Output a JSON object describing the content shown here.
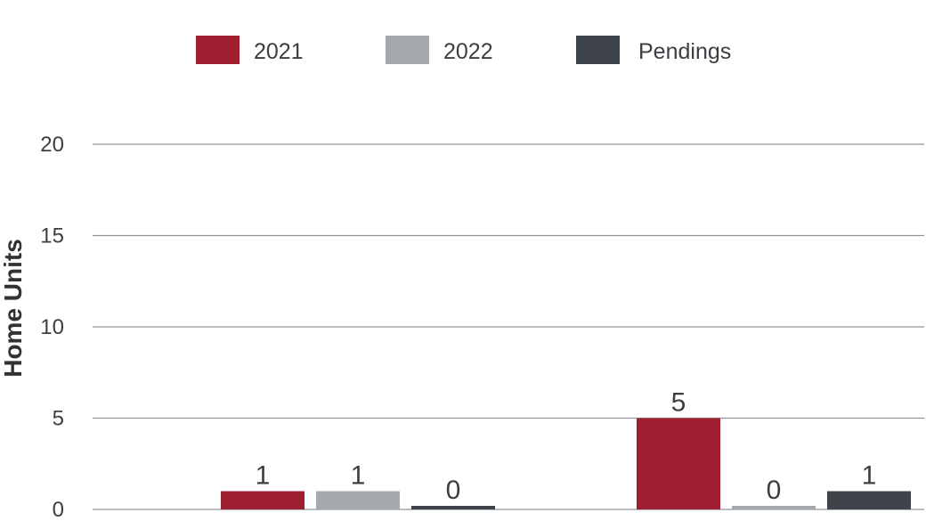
{
  "chart_data": {
    "type": "bar",
    "categories": [
      "",
      ""
    ],
    "series": [
      {
        "name": "2021",
        "values": [
          1,
          5
        ],
        "color": "#9e2030"
      },
      {
        "name": "2022",
        "values": [
          1,
          0
        ],
        "color": "#a3a9ad"
      },
      {
        "name": "Pendings",
        "values": [
          0,
          1
        ],
        "color": "#3e444a"
      }
    ],
    "title": "",
    "xlabel": "",
    "ylabel": "Home Units",
    "ylim": [
      0,
      20
    ],
    "yticks": [
      0,
      5,
      10,
      15,
      20
    ],
    "grid": true,
    "legend": "top-center"
  }
}
